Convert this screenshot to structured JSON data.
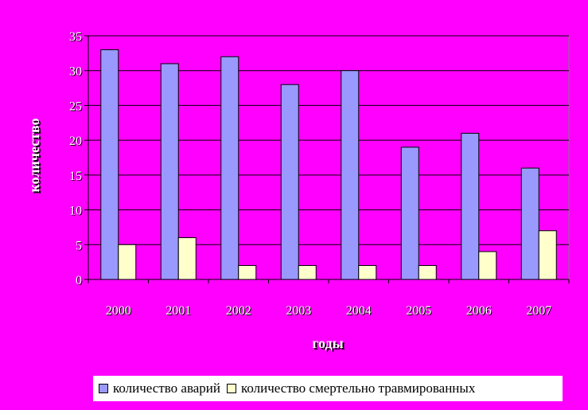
{
  "chart_data": {
    "type": "bar",
    "categories": [
      "2000",
      "2001",
      "2002",
      "2003",
      "2004",
      "2005",
      "2006",
      "2007"
    ],
    "series": [
      {
        "name": "количество аварий",
        "values": [
          33,
          31,
          32,
          28,
          30,
          19,
          21,
          16
        ],
        "color": "#9999ff"
      },
      {
        "name": "количество смертельно травмированных",
        "values": [
          5,
          6,
          2,
          2,
          2,
          2,
          4,
          7
        ],
        "color": "#ffffcc"
      }
    ],
    "xlabel": "годы",
    "ylabel": "количество",
    "ylim": [
      0,
      35
    ],
    "yticks": [
      "0",
      "5",
      "10",
      "15",
      "20",
      "25",
      "30",
      "35"
    ],
    "grid": true,
    "legend_placement": "bottom"
  }
}
